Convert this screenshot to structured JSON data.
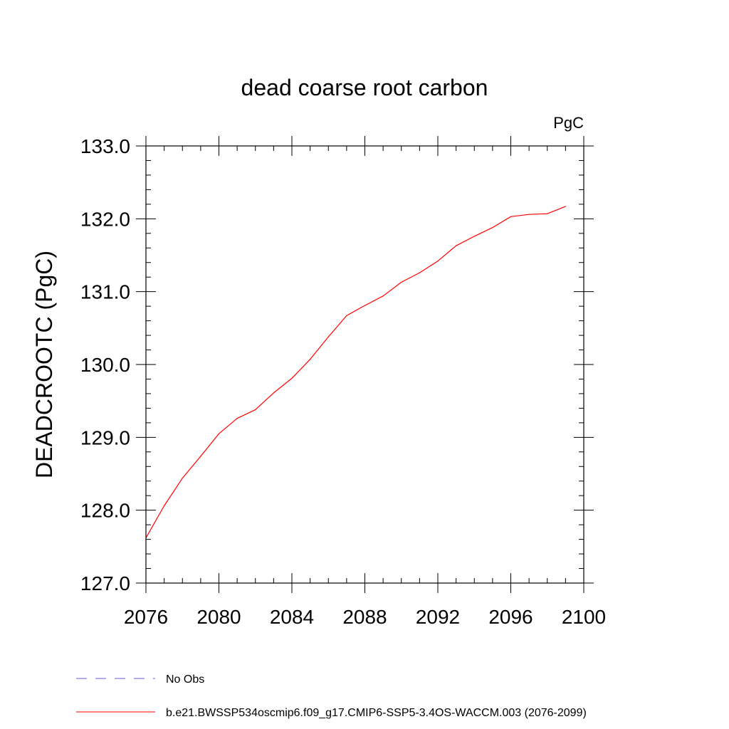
{
  "chart_data": {
    "type": "line",
    "title": "dead coarse root carbon",
    "units": "PgC",
    "ylabel": "DEADCROOTC  (PgC)",
    "xlabel": "",
    "xlim": [
      2076,
      2100
    ],
    "ylim": [
      127.0,
      133.0
    ],
    "x_major_ticks": [
      2076,
      2080,
      2084,
      2088,
      2092,
      2096,
      2100
    ],
    "x_tick_labels": [
      "2076",
      "2080",
      "2084",
      "2088",
      "2092",
      "2096",
      "2100"
    ],
    "x_minor_step": 1,
    "y_major_ticks": [
      127.0,
      128.0,
      129.0,
      130.0,
      131.0,
      132.0,
      133.0
    ],
    "y_tick_labels": [
      "127.0",
      "128.0",
      "129.0",
      "130.0",
      "131.0",
      "132.0",
      "133.0"
    ],
    "y_minor_step": 0.2,
    "grid": false,
    "series": [
      {
        "name": "b.e21.BWSSP534oscmip6.f09_g17.CMIP6-SSP5-3.4OS-WACCM.003 (2076-2099)",
        "color": "#ff0000",
        "style": "solid",
        "x": [
          2076,
          2077,
          2078,
          2079,
          2080,
          2081,
          2082,
          2083,
          2084,
          2085,
          2086,
          2087,
          2088,
          2089,
          2090,
          2091,
          2092,
          2093,
          2094,
          2095,
          2096,
          2097,
          2098,
          2099
        ],
        "y": [
          127.62,
          128.06,
          128.44,
          128.74,
          129.05,
          129.26,
          129.38,
          129.61,
          129.81,
          130.07,
          130.38,
          130.67,
          130.81,
          130.94,
          131.13,
          131.26,
          131.42,
          131.63,
          131.76,
          131.88,
          132.03,
          132.06,
          132.07,
          132.17
        ]
      }
    ],
    "legend": {
      "placement": "bottom-left",
      "entries": [
        {
          "label": "No Obs",
          "color": "#6a5acd",
          "style": "dashed"
        },
        {
          "label": "b.e21.BWSSP534oscmip6.f09_g17.CMIP6-SSP5-3.4OS-WACCM.003 (2076-2099)",
          "color": "#ff0000",
          "style": "solid"
        }
      ]
    }
  }
}
